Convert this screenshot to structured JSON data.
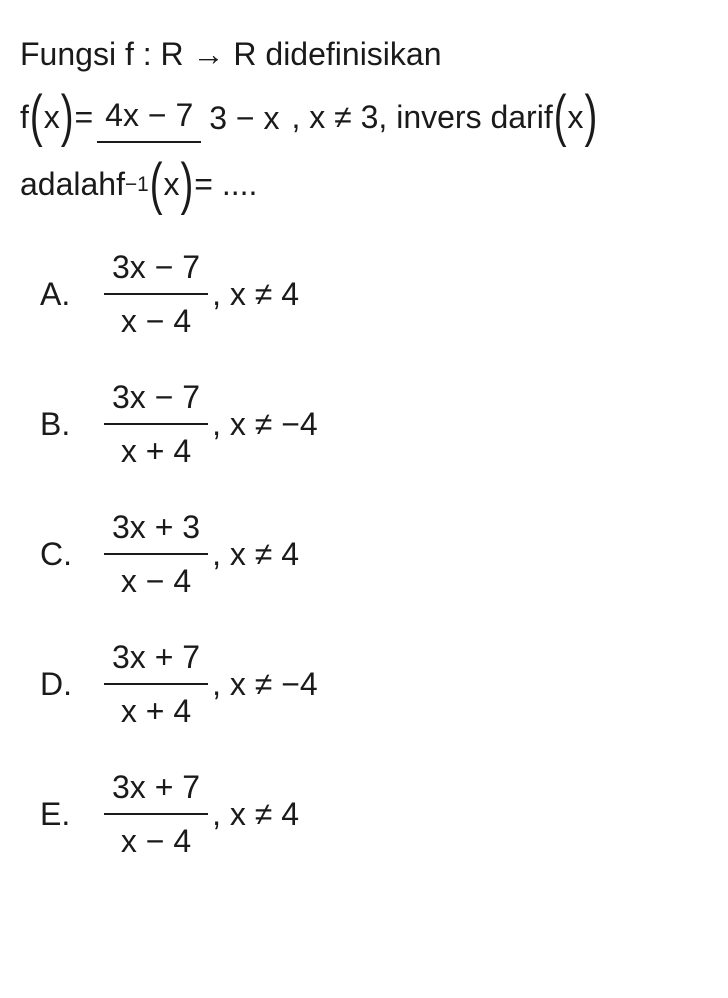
{
  "colors": {
    "text": "#1a1a1a",
    "background": "#ffffff"
  },
  "typography": {
    "fontsize_pt": 24,
    "font_family": "Segoe UI, Arial, sans-serif"
  },
  "question": {
    "line1_a": "Fungsi ",
    "line1_b": "f : R → R",
    "line1_c": " didefinisikan",
    "fx_lhs_f": "f",
    "fx_lhs_x": "x",
    "fx_eq": " = ",
    "fx_frac_num": "4x − 7",
    "fx_frac_den": "3 − x",
    "fx_cond": ", x ≠ 3,  invers dari ",
    "fx_rhs_f": "f",
    "fx_rhs_x": "x",
    "line3_a": "adalah ",
    "line3_f": "f",
    "line3_exp": "−1",
    "line3_x": "x",
    "line3_eq": " = ....",
    "lparen": "(",
    "rparen": ")"
  },
  "options": [
    {
      "letter": "A.",
      "num": "3x − 7",
      "den": "x − 4",
      "cond": ", x ≠ 4"
    },
    {
      "letter": "B.",
      "num": "3x − 7",
      "den": "x + 4",
      "cond": ", x ≠ −4"
    },
    {
      "letter": "C.",
      "num": "3x + 3",
      "den": "x − 4",
      "cond": ", x ≠ 4"
    },
    {
      "letter": "D.",
      "num": "3x + 7",
      "den": "x + 4",
      "cond": ", x ≠ −4"
    },
    {
      "letter": "E.",
      "num": "3x + 7",
      "den": "x − 4",
      "cond": ", x ≠ 4"
    }
  ]
}
